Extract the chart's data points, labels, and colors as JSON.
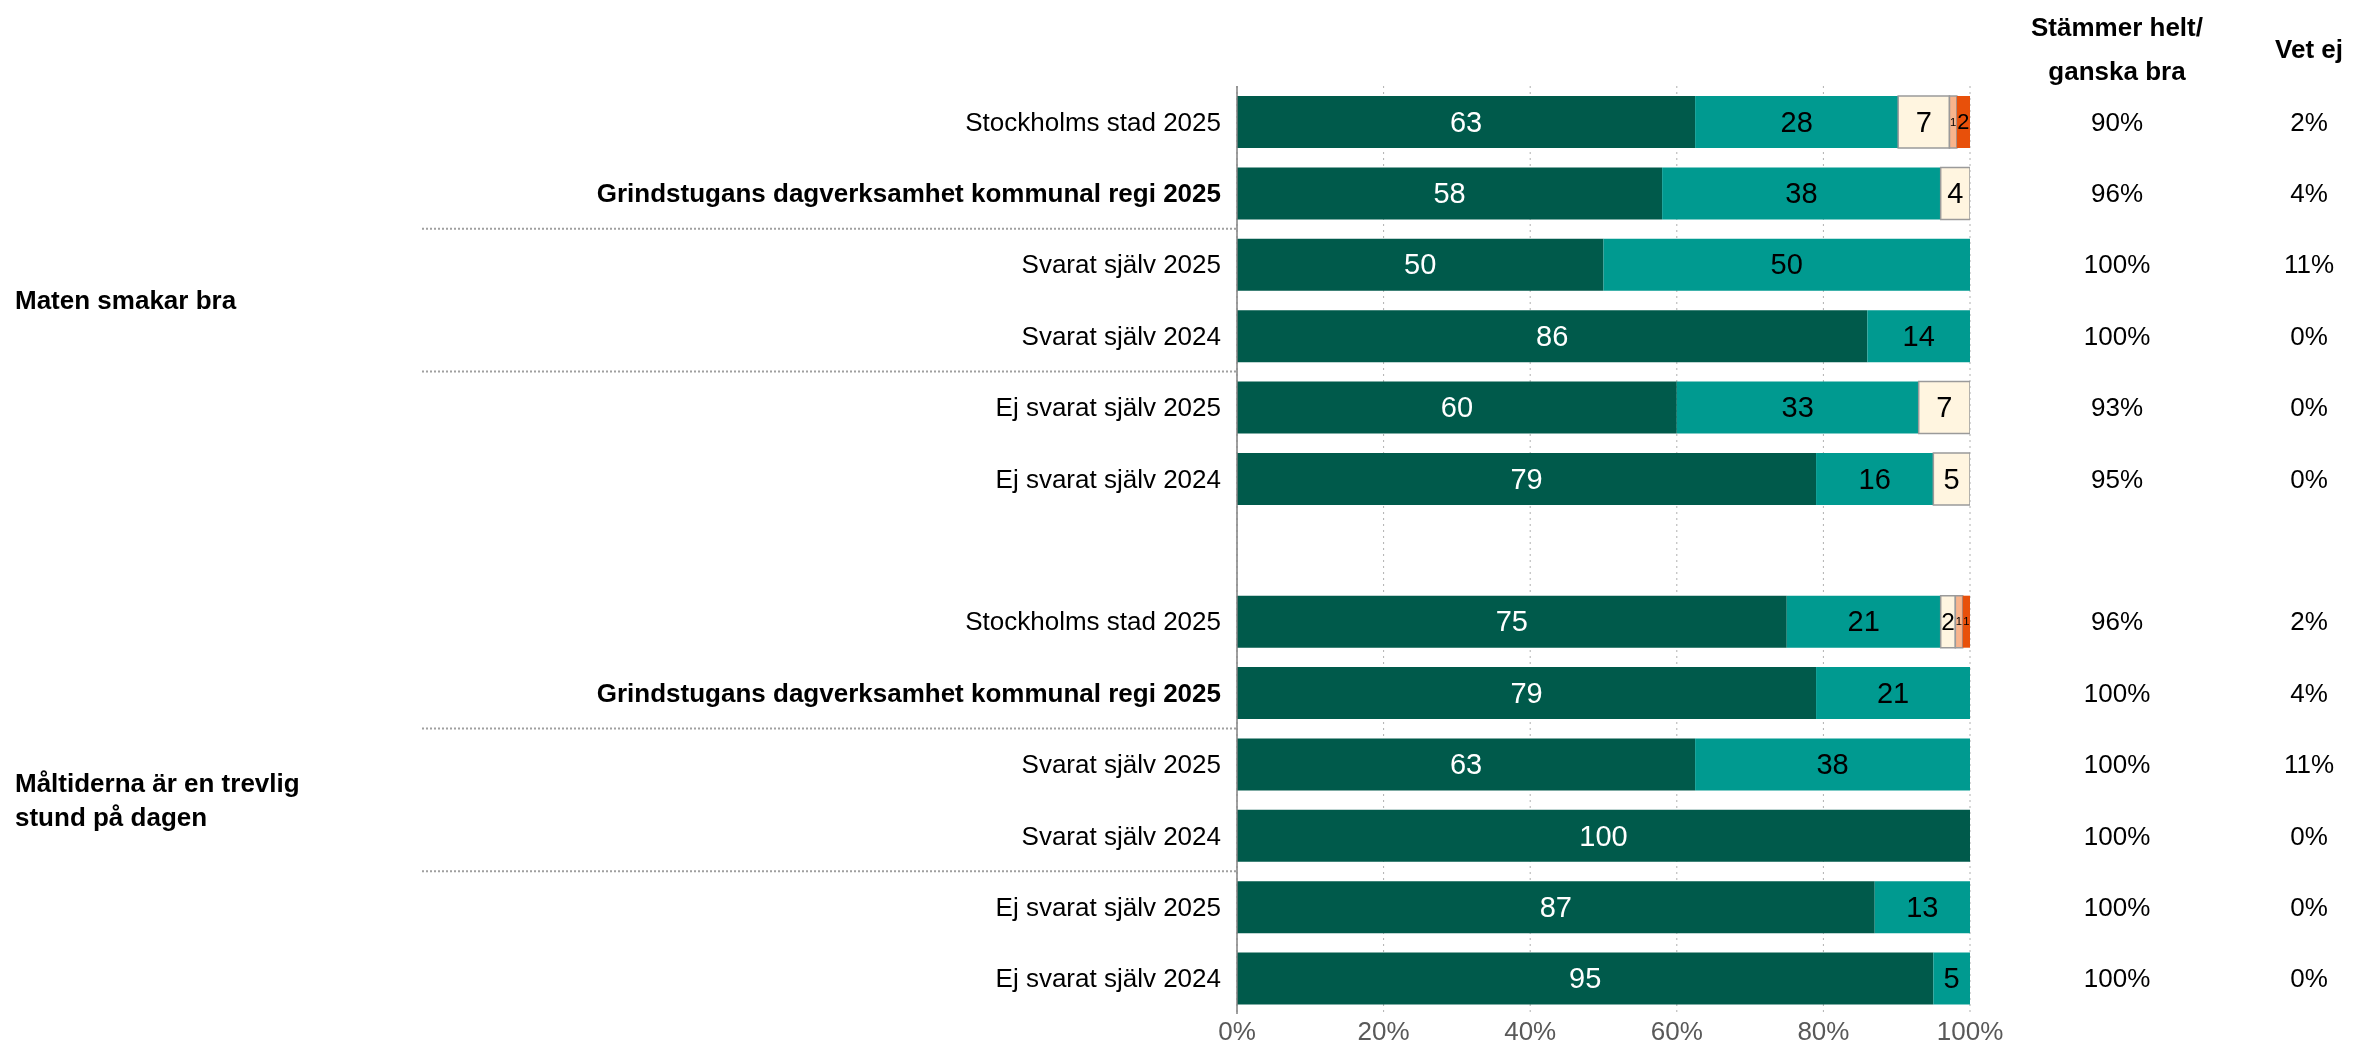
{
  "chart_data": {
    "type": "bar",
    "orientation": "horizontal",
    "stacked": true,
    "grid": "x",
    "categories": [
      "Stockholms stad 2025",
      "Grindstugans dagverksamhet kommunal regi 2025",
      "Svarat själv 2025",
      "Svarat själv 2024",
      "Ej svarat själv 2025",
      "Ej svarat själv 2024",
      null,
      "Stockholms stad 2025",
      "Grindstugans dagverksamhet kommunal regi 2025",
      "Svarat själv 2025",
      "Svarat själv 2024",
      "Ej svarat själv 2025",
      "Ej svarat själv 2024"
    ],
    "series": [
      {
        "color": "#005a4b",
        "values": [
          62.5,
          58,
          50,
          86,
          60,
          79,
          null,
          75,
          79,
          62.5,
          100,
          87,
          95
        ],
        "value_labels": [
          "63",
          "58",
          "50",
          "86",
          "60",
          "79",
          null,
          "75",
          "79",
          "63",
          "100",
          "87",
          "95"
        ]
      },
      {
        "color": "#009a90",
        "values": [
          27.7,
          38,
          50,
          14,
          33,
          16,
          null,
          21,
          21,
          37.5,
          null,
          13,
          5
        ],
        "value_labels": [
          "28",
          "38",
          "50",
          "14",
          "33",
          "16",
          null,
          "21",
          "21",
          "38",
          null,
          "13",
          "5"
        ]
      },
      {
        "color": "#fff5e0",
        "values": [
          7,
          4,
          null,
          null,
          7,
          5,
          null,
          2,
          null,
          null,
          null,
          null,
          null
        ],
        "value_labels": [
          "7",
          "4",
          null,
          null,
          "7",
          "5",
          null,
          "2",
          null,
          null,
          null,
          null,
          null
        ]
      },
      {
        "color": "#f8b48c",
        "values": [
          1,
          null,
          null,
          null,
          null,
          null,
          null,
          1,
          null,
          null,
          null,
          null,
          null
        ],
        "value_labels": [
          "1",
          null,
          null,
          null,
          null,
          null,
          null,
          "1",
          null,
          null,
          null,
          null,
          null
        ]
      },
      {
        "color": "#e8500a",
        "values": [
          1.8,
          null,
          null,
          null,
          null,
          null,
          null,
          1,
          null,
          null,
          null,
          null,
          null
        ],
        "value_labels": [
          "2",
          null,
          null,
          null,
          null,
          null,
          null,
          "1",
          null,
          null,
          null,
          null,
          null
        ]
      }
    ],
    "xlim": [
      0,
      100
    ],
    "xticks": [
      {
        "value": 0,
        "label": "0%"
      },
      {
        "value": 20,
        "label": "20%"
      },
      {
        "value": 40,
        "label": "40%"
      },
      {
        "value": 60,
        "label": "60%"
      },
      {
        "value": 80,
        "label": "80%"
      },
      {
        "value": 100,
        "label": "100%"
      }
    ],
    "annotations": [
      "Maten smakar bra",
      "Måltiderna är en trevlig stund på dagen",
      "Stämmer helt/ ganska bra",
      "Vet ej",
      "90%",
      "2%",
      "96%",
      "4%",
      "100%",
      "11%",
      "100%",
      "0%",
      "93%",
      "0%",
      "95%",
      "0%",
      "96%",
      "2%",
      "100%",
      "4%",
      "100%",
      "11%",
      "100%",
      "0%",
      "100%",
      "0%",
      "100%",
      "0%"
    ]
  }
}
